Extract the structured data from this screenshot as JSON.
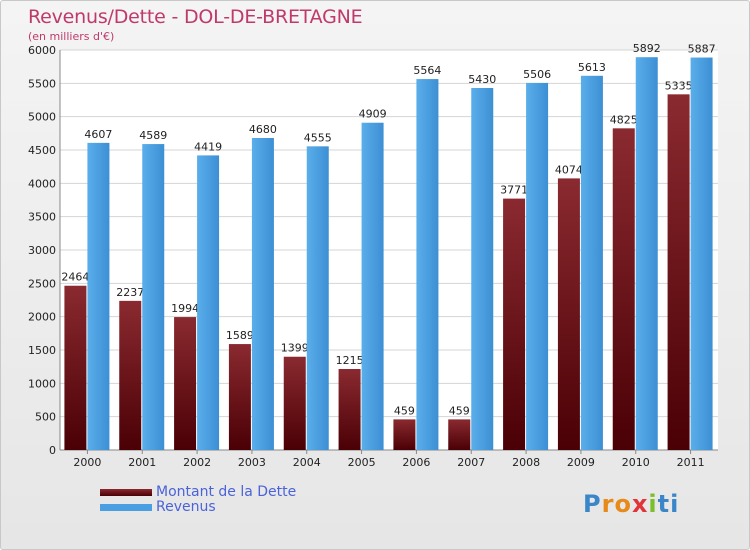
{
  "title": "Revenus/Dette - DOL-DE-BRETAGNE",
  "subtitle": "(en milliers d'€)",
  "logo": "Proxiti",
  "colors": {
    "dette": "#6b0f14",
    "revenus": "#4a9fe2",
    "title": "#c0396b",
    "legend_text": "#4a63d9"
  },
  "chart_data": {
    "type": "bar",
    "title": "Revenus/Dette - DOL-DE-BRETAGNE",
    "subtitle": "(en milliers d'€)",
    "categories": [
      "2000",
      "2001",
      "2002",
      "2003",
      "2004",
      "2005",
      "2006",
      "2007",
      "2008",
      "2009",
      "2010",
      "2011"
    ],
    "series": [
      {
        "name": "Montant de la Dette",
        "values": [
          2464,
          2237,
          1994,
          1589,
          1399,
          1215,
          459,
          459,
          3771,
          4074,
          4825,
          5335
        ],
        "labels": [
          "2464",
          "2237",
          "1994",
          "1589",
          "1399",
          "1215",
          "459",
          "459",
          "3771",
          "4074",
          "4825",
          "5335"
        ]
      },
      {
        "name": "Revenus",
        "values": [
          4607,
          4589,
          4419,
          4680,
          4555,
          4909,
          5564,
          5430,
          5506,
          5613,
          5892,
          5887
        ],
        "labels": [
          "4607",
          "4589",
          "4419",
          "4680",
          "4555",
          "4909",
          "5564",
          "5430",
          "5506",
          "5613",
          "5892",
          "5887"
        ]
      }
    ],
    "ylim": [
      0,
      6000
    ],
    "yticks": [
      0,
      500,
      1000,
      1500,
      2000,
      2500,
      3000,
      3500,
      4000,
      4500,
      5000,
      5500,
      6000
    ],
    "grid": true,
    "legend": "bottom-left"
  }
}
